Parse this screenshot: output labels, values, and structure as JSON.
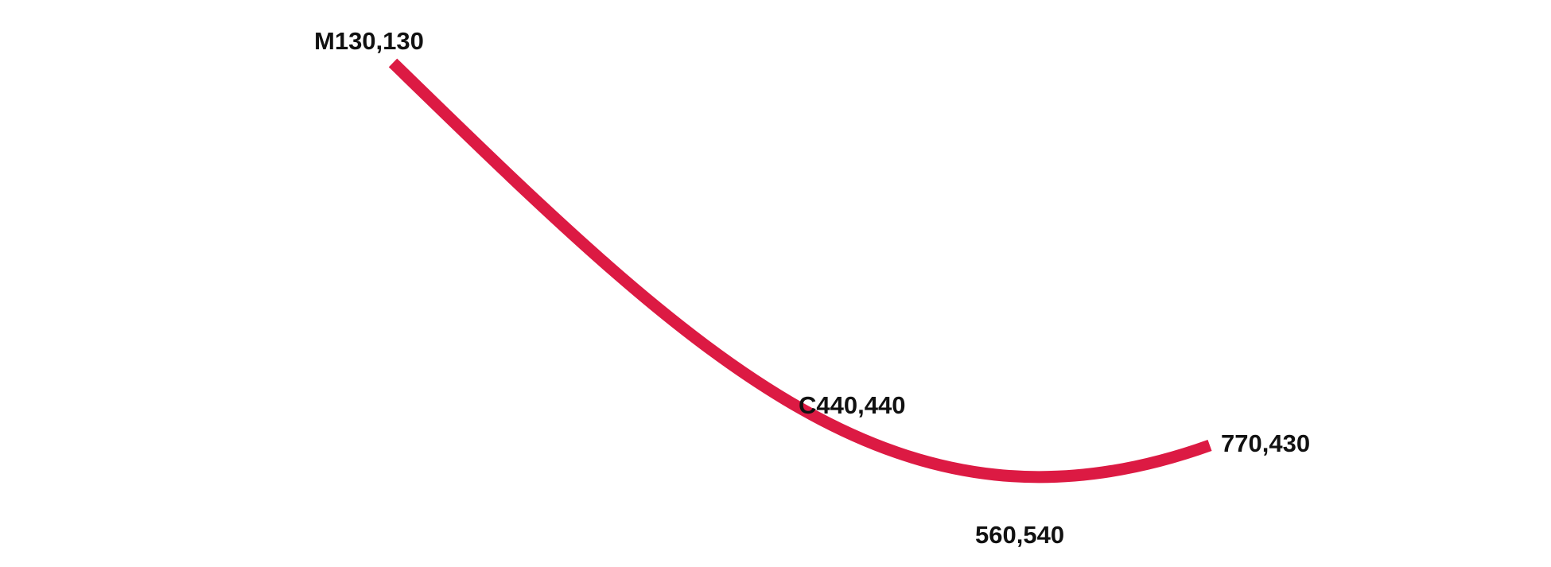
{
  "diagram": {
    "curve_color": "#dc1a43",
    "text_color": "#111111",
    "labels": {
      "move_to": "M130,130",
      "control_1": "C440,440",
      "control_2": "560,540",
      "end_point": "770,430"
    }
  }
}
